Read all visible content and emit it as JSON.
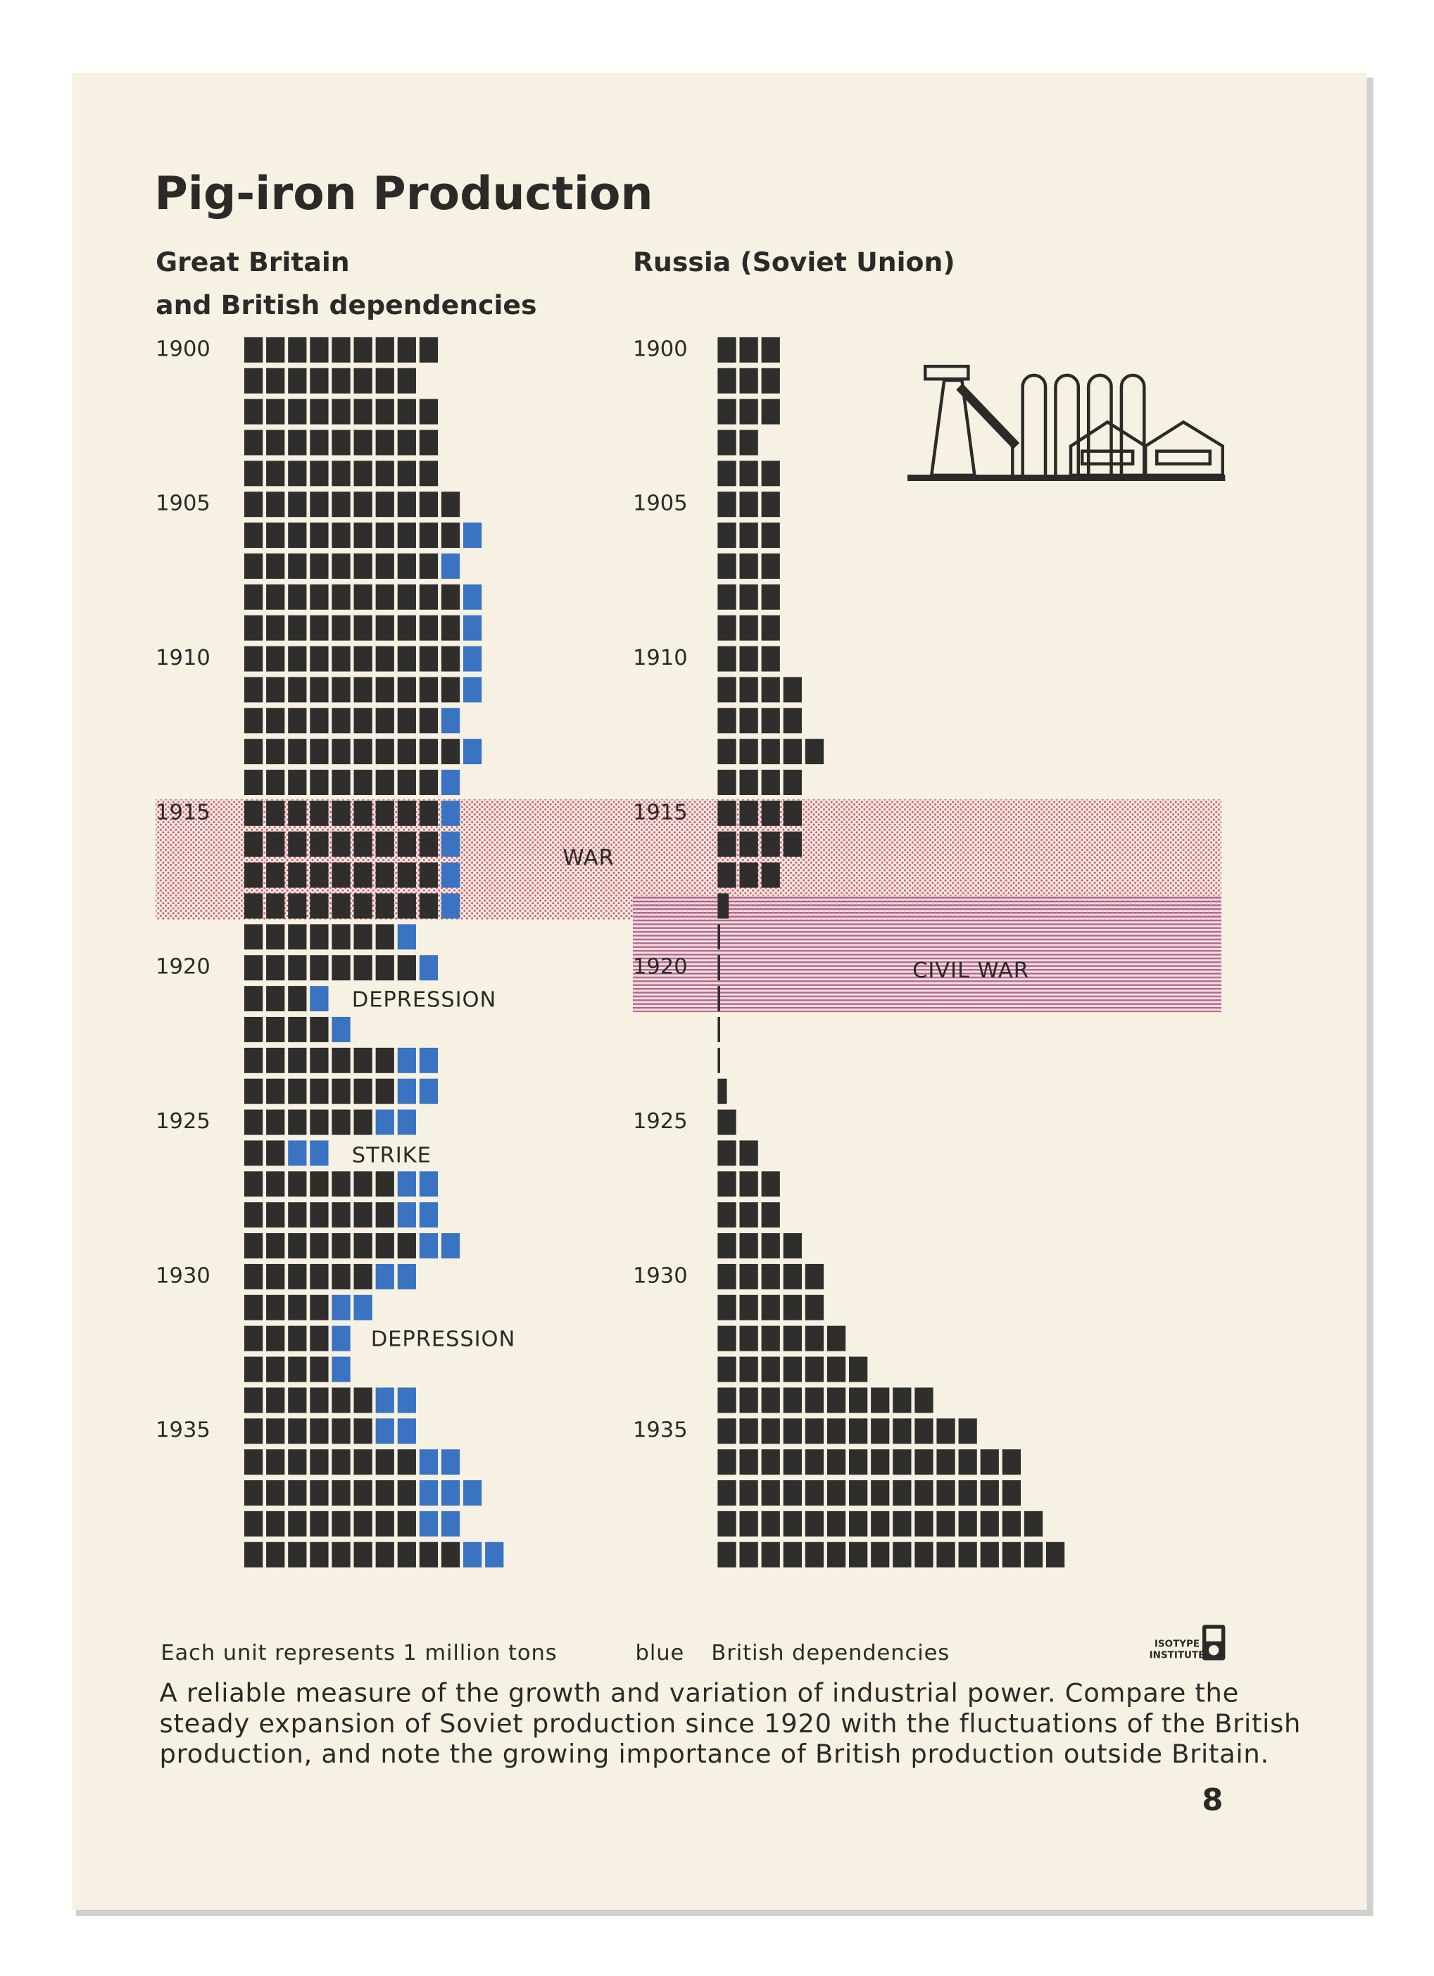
{
  "chart_data": {
    "type": "pictogram",
    "title": "Pig-iron Production",
    "categories": [
      "1900",
      null,
      null,
      null,
      null,
      "1905",
      null,
      null,
      null,
      null,
      "1910",
      null,
      null,
      null,
      null,
      "1915",
      null,
      null,
      null,
      null,
      "1920",
      null,
      null,
      null,
      null,
      "1925",
      null,
      null,
      null,
      null,
      "1930",
      null,
      null,
      null,
      null,
      "1935",
      null,
      null,
      null,
      null
    ],
    "panels": [
      {
        "title_lines": [
          "Great Britain",
          "and British dependencies"
        ],
        "series": [
          {
            "color": "#2f2e2c",
            "values": [
              9,
              8,
              9,
              9,
              9,
              10,
              10,
              9,
              10,
              10,
              10,
              10,
              9,
              10,
              9,
              9,
              9,
              9,
              9,
              7,
              8,
              3,
              4,
              7,
              7,
              6,
              2,
              7,
              7,
              8,
              6,
              4,
              4,
              4,
              6,
              6,
              8,
              8,
              8,
              10
            ]
          },
          {
            "color": "#3a73c2",
            "values": [
              0,
              0,
              0,
              0,
              0,
              0,
              1,
              1,
              1,
              1,
              1,
              1,
              1,
              1,
              1,
              1,
              1,
              1,
              1,
              1,
              1,
              1,
              1,
              2,
              2,
              2,
              2,
              2,
              2,
              2,
              2,
              2,
              1,
              1,
              2,
              2,
              2,
              3,
              2,
              2
            ]
          }
        ]
      },
      {
        "title_lines": [
          "Russia (Soviet Union)"
        ],
        "series": [
          {
            "color": "#2f2e2c",
            "values": [
              3,
              3,
              3,
              2,
              3,
              3,
              3,
              3,
              3,
              3,
              3,
              4,
              4,
              5,
              4,
              4,
              4,
              3,
              0.6,
              0.1,
              0.1,
              0.1,
              0.1,
              0.1,
              0.5,
              1,
              2,
              3,
              3,
              4,
              5,
              5,
              6,
              7,
              10,
              12,
              14,
              14,
              15,
              16
            ]
          }
        ]
      }
    ],
    "annotations": [
      "WAR",
      "CIVIL WAR",
      "DEPRESSION",
      "STRIKE",
      "DEPRESSION"
    ],
    "legend": {
      "unit": "Each unit represents 1 million tons",
      "blue": "blue",
      "blue_meaning": "British dependencies"
    },
    "caption_lines": [
      "A reliable measure of the growth and variation of industrial power.  Compare the",
      "steady expansion of Soviet production since 1920 with the fluctuations of the British",
      "production, and note the growing importance of British production outside Britain."
    ],
    "page_number": "8",
    "logo_lines": [
      "ISOTYPE",
      "INSTITUTE"
    ]
  }
}
